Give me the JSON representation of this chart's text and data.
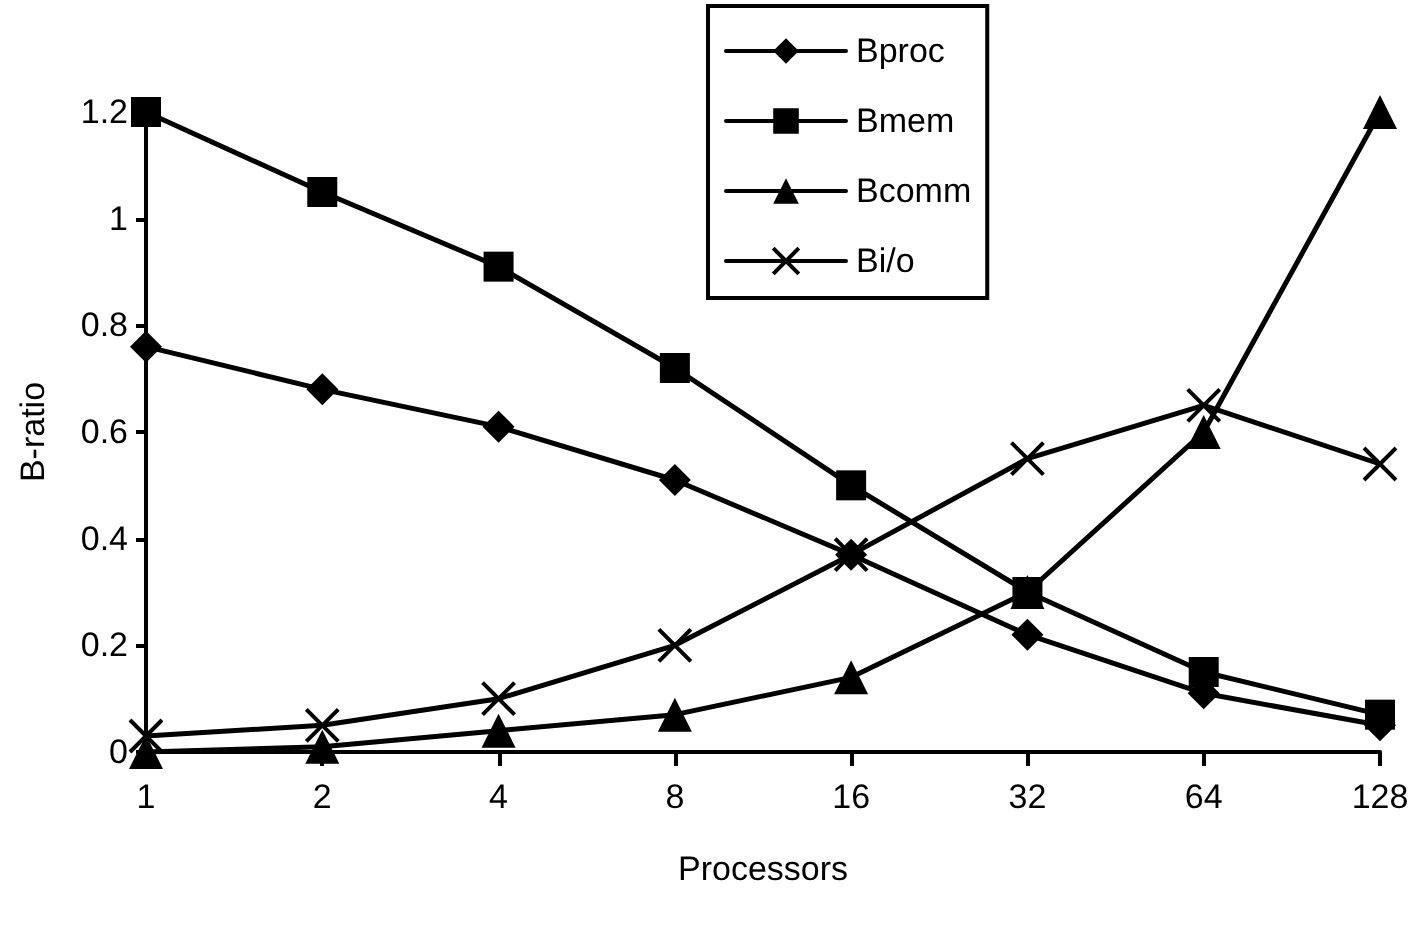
{
  "chart_data": {
    "type": "line",
    "xlabel": "Processors",
    "ylabel": "B-ratio",
    "categories": [
      "1",
      "2",
      "4",
      "8",
      "16",
      "32",
      "64",
      "128"
    ],
    "ylim": [
      0,
      1.2
    ],
    "yticks": [
      {
        "value": 0,
        "label": "0"
      },
      0.2,
      0.4,
      0.6,
      0.8,
      {
        "value": 1,
        "label": "1"
      },
      1.2
    ],
    "grid": false,
    "legend": "top right",
    "line_style": "solid",
    "series": [
      {
        "name": "Bproc",
        "color": "#000000",
        "marker": "diamond",
        "values": [
          0.76,
          0.68,
          0.61,
          0.51,
          0.37,
          0.22,
          0.11,
          0.05
        ]
      },
      {
        "name": "Bmem",
        "color": "#000000",
        "marker": "square",
        "values": [
          1.2,
          1.05,
          0.91,
          0.72,
          0.5,
          0.3,
          0.15,
          0.07
        ]
      },
      {
        "name": "Bcomm",
        "color": "#000000",
        "marker": "triangle",
        "values": [
          0.0,
          0.01,
          0.04,
          0.07,
          0.14,
          0.3,
          0.6,
          1.2
        ]
      },
      {
        "name": "Bi/o",
        "color": "#000000",
        "marker": "cross",
        "values": [
          0.03,
          0.05,
          0.1,
          0.2,
          0.37,
          0.55,
          0.65,
          0.54
        ]
      }
    ]
  }
}
